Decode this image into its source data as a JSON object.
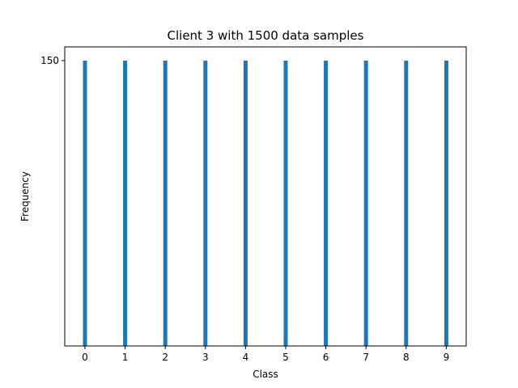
{
  "chart_data": {
    "type": "bar",
    "title": "Client 3  with 1500 data samples",
    "xlabel": "Class",
    "ylabel": "Frequency",
    "categories": [
      "0",
      "1",
      "2",
      "3",
      "4",
      "5",
      "6",
      "7",
      "8",
      "9"
    ],
    "values": [
      150,
      150,
      150,
      150,
      150,
      150,
      150,
      150,
      150,
      150
    ],
    "x_ticks": [
      "0",
      "1",
      "2",
      "3",
      "4",
      "5",
      "6",
      "7",
      "8",
      "9"
    ],
    "y_ticks": [
      "150"
    ],
    "bar_color": "#1f77b4",
    "grid": false,
    "legend": "none"
  }
}
